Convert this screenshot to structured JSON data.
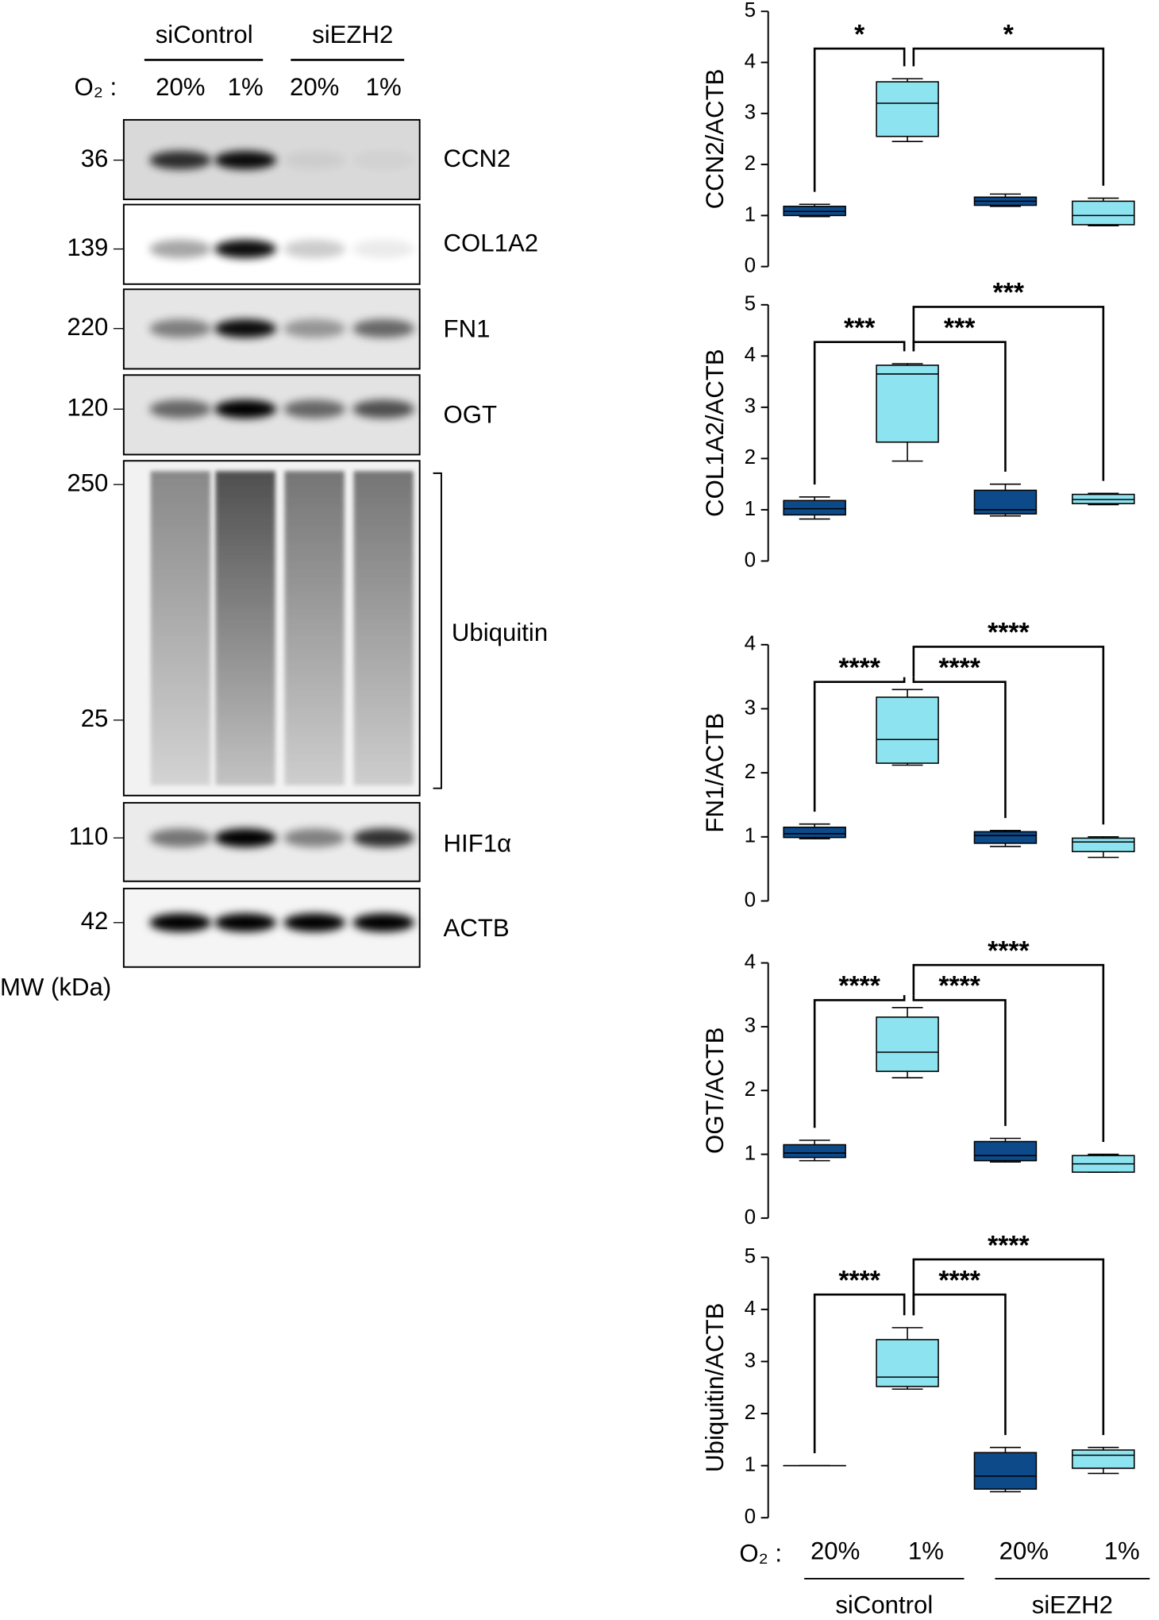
{
  "blot": {
    "groups": [
      "siControl",
      "siEZH2"
    ],
    "o2_label": "O₂ :",
    "lanes": [
      "20%",
      "1%",
      "20%",
      "1%"
    ],
    "mw_label": "MW (kDa)",
    "panels": [
      {
        "protein": "CCN2",
        "mw": [
          "36"
        ]
      },
      {
        "protein": "COL1A2",
        "mw": [
          "139"
        ]
      },
      {
        "protein": "FN1",
        "mw": [
          "220"
        ]
      },
      {
        "protein": "OGT",
        "mw": [
          "120"
        ]
      },
      {
        "protein": "Ubiquitin",
        "mw": [
          "250",
          "25"
        ]
      },
      {
        "protein": "HIF1α",
        "mw": [
          "110"
        ]
      },
      {
        "protein": "ACTB",
        "mw": [
          "42"
        ]
      }
    ]
  },
  "x_axis": {
    "o2_label": "O₂ :",
    "categories": [
      "20%",
      "1%",
      "20%",
      "1%"
    ],
    "groups": [
      "siControl",
      "siEZH2"
    ]
  },
  "chart_data": [
    {
      "type": "box",
      "ylabel": "CCN2/ACTB",
      "ylim": [
        0,
        5
      ],
      "yticks": [
        0,
        1,
        2,
        3,
        4,
        5
      ],
      "boxes": [
        {
          "color": "#0d4a8a",
          "min": 0.98,
          "q1": 1.0,
          "median": 1.08,
          "q3": 1.18,
          "max": 1.22
        },
        {
          "color": "#8ee3f0",
          "min": 2.45,
          "q1": 2.55,
          "median": 3.2,
          "q3": 3.62,
          "max": 3.68
        },
        {
          "color": "#0d4a8a",
          "min": 1.18,
          "q1": 1.2,
          "median": 1.28,
          "q3": 1.36,
          "max": 1.42
        },
        {
          "color": "#8ee3f0",
          "min": 0.8,
          "q1": 0.82,
          "median": 1.0,
          "q3": 1.28,
          "max": 1.34
        }
      ],
      "comparisons": [
        {
          "from": 0,
          "to": 1,
          "label": "*"
        },
        {
          "from": 1,
          "to": 3,
          "label": "*"
        }
      ]
    },
    {
      "type": "box",
      "ylabel": "COL1A2/ACTB",
      "ylim": [
        0,
        5
      ],
      "yticks": [
        0,
        1,
        2,
        3,
        4,
        5
      ],
      "boxes": [
        {
          "color": "#0d4a8a",
          "min": 0.82,
          "q1": 0.9,
          "median": 1.02,
          "q3": 1.18,
          "max": 1.25
        },
        {
          "color": "#8ee3f0",
          "min": 1.95,
          "q1": 2.32,
          "median": 3.65,
          "q3": 3.82,
          "max": 3.85
        },
        {
          "color": "#0d4a8a",
          "min": 0.88,
          "q1": 0.92,
          "median": 1.0,
          "q3": 1.38,
          "max": 1.5
        },
        {
          "color": "#8ee3f0",
          "min": 1.1,
          "q1": 1.12,
          "median": 1.2,
          "q3": 1.3,
          "max": 1.32
        }
      ],
      "comparisons": [
        {
          "from": 0,
          "to": 1,
          "label": "***"
        },
        {
          "from": 1,
          "to": 2,
          "label": "***"
        },
        {
          "from": 1,
          "to": 3,
          "label": "***"
        }
      ]
    },
    {
      "type": "box",
      "ylabel": "FN1/ACTB",
      "ylim": [
        0,
        4
      ],
      "yticks": [
        0,
        1,
        2,
        3,
        4
      ],
      "boxes": [
        {
          "color": "#0d4a8a",
          "min": 0.97,
          "q1": 0.99,
          "median": 1.05,
          "q3": 1.15,
          "max": 1.2
        },
        {
          "color": "#8ee3f0",
          "min": 2.12,
          "q1": 2.15,
          "median": 2.52,
          "q3": 3.18,
          "max": 3.3
        },
        {
          "color": "#0d4a8a",
          "min": 0.85,
          "q1": 0.9,
          "median": 1.02,
          "q3": 1.08,
          "max": 1.1
        },
        {
          "color": "#8ee3f0",
          "min": 0.68,
          "q1": 0.77,
          "median": 0.92,
          "q3": 0.98,
          "max": 1.0
        }
      ],
      "comparisons": [
        {
          "from": 0,
          "to": 1,
          "label": "****"
        },
        {
          "from": 1,
          "to": 2,
          "label": "****"
        },
        {
          "from": 1,
          "to": 3,
          "label": "****"
        }
      ]
    },
    {
      "type": "box",
      "ylabel": "OGT/ACTB",
      "ylim": [
        0,
        4
      ],
      "yticks": [
        0,
        1,
        2,
        3,
        4
      ],
      "boxes": [
        {
          "color": "#0d4a8a",
          "min": 0.9,
          "q1": 0.95,
          "median": 1.02,
          "q3": 1.15,
          "max": 1.22
        },
        {
          "color": "#8ee3f0",
          "min": 2.2,
          "q1": 2.3,
          "median": 2.6,
          "q3": 3.15,
          "max": 3.3
        },
        {
          "color": "#0d4a8a",
          "min": 0.88,
          "q1": 0.9,
          "median": 0.98,
          "q3": 1.2,
          "max": 1.25
        },
        {
          "color": "#8ee3f0",
          "min": 0.72,
          "q1": 0.72,
          "median": 0.85,
          "q3": 0.98,
          "max": 1.0
        }
      ],
      "comparisons": [
        {
          "from": 0,
          "to": 1,
          "label": "****"
        },
        {
          "from": 1,
          "to": 2,
          "label": "****"
        },
        {
          "from": 1,
          "to": 3,
          "label": "****"
        }
      ]
    },
    {
      "type": "box",
      "ylabel": "Ubiquitin/ACTB",
      "ylim": [
        0,
        5
      ],
      "yticks": [
        0,
        1,
        2,
        3,
        4,
        5
      ],
      "boxes": [
        {
          "color": "#0d4a8a",
          "min": 1,
          "q1": 1,
          "median": 1,
          "q3": 1,
          "max": 1
        },
        {
          "color": "#8ee3f0",
          "min": 2.47,
          "q1": 2.52,
          "median": 2.7,
          "q3": 3.42,
          "max": 3.65
        },
        {
          "color": "#0d4a8a",
          "min": 0.5,
          "q1": 0.55,
          "median": 0.8,
          "q3": 1.25,
          "max": 1.35
        },
        {
          "color": "#8ee3f0",
          "min": 0.85,
          "q1": 0.95,
          "median": 1.2,
          "q3": 1.3,
          "max": 1.35
        }
      ],
      "comparisons": [
        {
          "from": 0,
          "to": 1,
          "label": "****"
        },
        {
          "from": 1,
          "to": 2,
          "label": "****"
        },
        {
          "from": 1,
          "to": 3,
          "label": "****"
        }
      ]
    }
  ]
}
